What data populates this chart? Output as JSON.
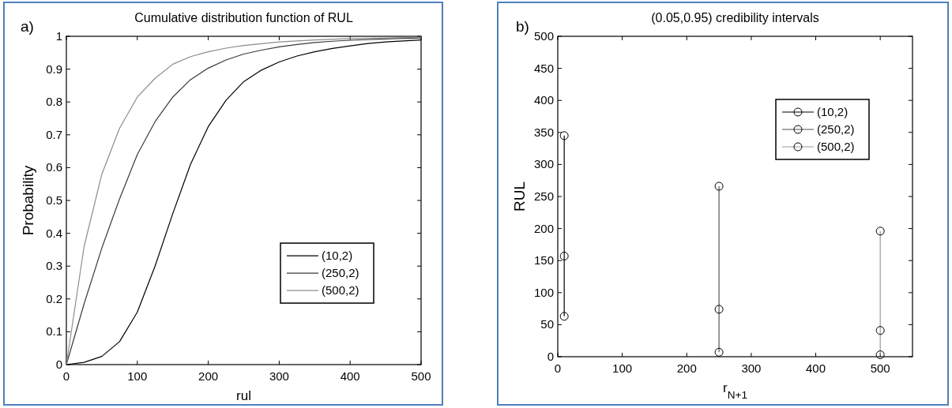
{
  "chart_data": [
    {
      "type": "line",
      "title": "Cumulative distribution function of RUL",
      "xlabel": "rul",
      "ylabel": "Probability",
      "annotations": [
        "a)"
      ],
      "xlim": [
        0,
        500
      ],
      "xticks": [
        0,
        100,
        200,
        300,
        400,
        500
      ],
      "ylim": [
        0,
        1
      ],
      "yticks": [
        0,
        0.1,
        0.2,
        0.3,
        0.4,
        0.5,
        0.6,
        0.7,
        0.8,
        0.9,
        1
      ],
      "grid": false,
      "legend": "right",
      "marker": "none",
      "line_style": "solid",
      "series": [
        {
          "name": "(10,2)",
          "color": "#000000",
          "x": [
            0,
            25,
            50,
            75,
            100,
            125,
            150,
            175,
            200,
            225,
            250,
            275,
            300,
            325,
            350,
            375,
            400,
            425,
            450,
            475,
            500
          ],
          "values": [
            0,
            0.007,
            0.025,
            0.07,
            0.16,
            0.3,
            0.46,
            0.61,
            0.725,
            0.805,
            0.862,
            0.897,
            0.922,
            0.94,
            0.953,
            0.963,
            0.971,
            0.978,
            0.983,
            0.986,
            0.989
          ]
        },
        {
          "name": "(250,2)",
          "color": "#3a3a3a",
          "x": [
            0,
            25,
            50,
            75,
            100,
            125,
            150,
            175,
            200,
            225,
            250,
            275,
            300,
            325,
            350,
            375,
            400,
            450,
            500
          ],
          "values": [
            0,
            0.185,
            0.355,
            0.505,
            0.64,
            0.74,
            0.815,
            0.868,
            0.903,
            0.928,
            0.946,
            0.958,
            0.968,
            0.975,
            0.981,
            0.985,
            0.988,
            0.992,
            0.995
          ]
        },
        {
          "name": "(500,2)",
          "color": "#8c8c8c",
          "x": [
            0,
            25,
            50,
            75,
            100,
            125,
            150,
            175,
            200,
            225,
            250,
            300,
            350,
            400,
            450,
            500
          ],
          "values": [
            0,
            0.36,
            0.58,
            0.72,
            0.815,
            0.872,
            0.915,
            0.938,
            0.953,
            0.964,
            0.972,
            0.983,
            0.989,
            0.993,
            0.995,
            0.997
          ]
        }
      ]
    },
    {
      "type": "line",
      "title": "(0.05,0.95) credibility intervals",
      "xlabel": "r$_{N+1}$",
      "ylabel": "RUL",
      "annotations": [
        "b)"
      ],
      "xlim": [
        0,
        550
      ],
      "xticks": [
        0,
        100,
        200,
        300,
        400,
        500
      ],
      "ylim": [
        0,
        500
      ],
      "yticks": [
        0,
        50,
        100,
        150,
        200,
        250,
        300,
        350,
        400,
        450,
        500
      ],
      "grid": false,
      "legend": "top right",
      "marker": "circle",
      "line_style": "solid",
      "series": [
        {
          "name": "(10,2)",
          "color": "#000000",
          "x": [
            10,
            10,
            10
          ],
          "values": [
            63,
            157,
            345
          ]
        },
        {
          "name": "(250,2)",
          "color": "#555555",
          "x": [
            250,
            250,
            250
          ],
          "values": [
            7,
            74,
            266
          ]
        },
        {
          "name": "(500,2)",
          "color": "#999999",
          "x": [
            500,
            500,
            500
          ],
          "values": [
            3,
            41,
            196
          ]
        }
      ]
    }
  ]
}
